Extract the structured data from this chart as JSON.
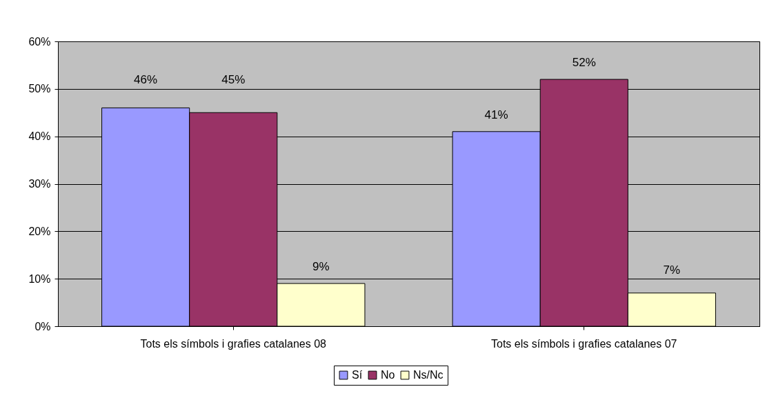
{
  "chart_data": {
    "type": "bar",
    "categories": [
      "Tots els símbols i grafies catalanes 08",
      "Tots els símbols i grafies catalanes 07"
    ],
    "series": [
      {
        "name": "Sí",
        "color": "#9999ff",
        "values": [
          46,
          41
        ],
        "value_labels": [
          "46%",
          "41%"
        ]
      },
      {
        "name": "No",
        "color": "#993366",
        "values": [
          45,
          52
        ],
        "value_labels": [
          "45%",
          "52%"
        ]
      },
      {
        "name": "Ns/Nc",
        "color": "#ffffcc",
        "values": [
          9,
          7
        ],
        "value_labels": [
          "9%",
          "7%"
        ]
      }
    ],
    "ylim": [
      0,
      60
    ],
    "yticks": [
      {
        "value": 0,
        "label": "0%"
      },
      {
        "value": 10,
        "label": "10%"
      },
      {
        "value": 20,
        "label": "20%"
      },
      {
        "value": 30,
        "label": "30%"
      },
      {
        "value": 40,
        "label": "40%"
      },
      {
        "value": 50,
        "label": "50%"
      },
      {
        "value": 60,
        "label": "60%"
      }
    ],
    "grid": "y",
    "legend": "bottom"
  }
}
